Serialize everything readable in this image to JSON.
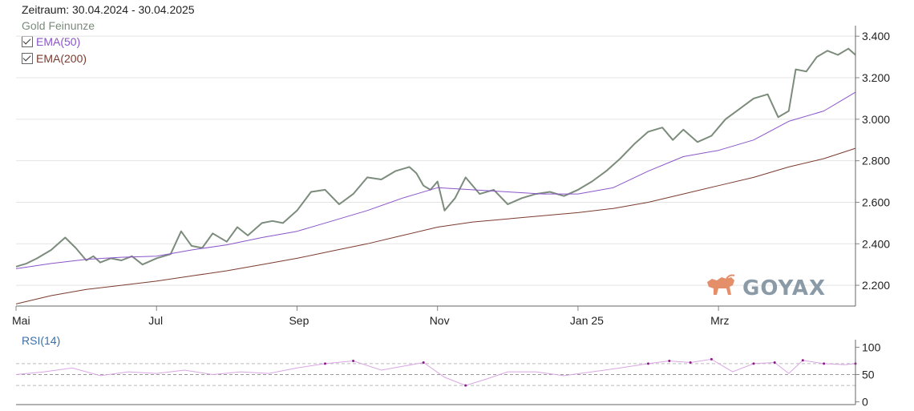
{
  "header": {
    "period": "Zeitraum: 30.04.2024 - 30.04.2025",
    "series": "Gold Feinunze",
    "legend": [
      {
        "label": "EMA(50)",
        "checked": true,
        "color": "#8a55c9"
      },
      {
        "label": "EMA(200)",
        "checked": true,
        "color": "#7a3b2e"
      }
    ]
  },
  "logo": {
    "text": "GOYAX"
  },
  "rsi": {
    "label": "RSI(14)"
  },
  "colors": {
    "price": "#7c8c7c",
    "ema50": "#8a55c9",
    "ema200": "#7a3b2e",
    "rsi": "#d9a6e3",
    "rsi_extreme": "#8c1a8c",
    "logo": "#e48e6a",
    "logo_text": "#8a9aa6"
  },
  "chart_data": [
    {
      "type": "line",
      "title": "Gold Feinunze",
      "x_ticks": [
        "Mai",
        "Jul",
        "Sep",
        "Nov",
        "Jan 25",
        "Mrz"
      ],
      "x_tick_months": [
        0,
        2,
        4,
        6,
        8,
        10
      ],
      "y_ticks": [
        "2.200",
        "2.400",
        "2.600",
        "2.800",
        "3.000",
        "3.200",
        "3.400"
      ],
      "y_tick_values": [
        2200,
        2400,
        2600,
        2800,
        3000,
        3200,
        3400
      ],
      "ylim": [
        2100,
        3420
      ],
      "xlim_months": [
        0,
        11.95
      ],
      "grid": true,
      "series": [
        {
          "name": "Gold Feinunze",
          "x": [
            0,
            0.15,
            0.3,
            0.5,
            0.7,
            0.85,
            1.0,
            1.1,
            1.2,
            1.35,
            1.5,
            1.65,
            1.8,
            2.0,
            2.2,
            2.35,
            2.5,
            2.65,
            2.8,
            3.0,
            3.15,
            3.3,
            3.5,
            3.65,
            3.8,
            4.0,
            4.2,
            4.4,
            4.6,
            4.8,
            5.0,
            5.2,
            5.4,
            5.6,
            5.7,
            5.8,
            5.9,
            6.0,
            6.1,
            6.25,
            6.4,
            6.6,
            6.8,
            7.0,
            7.2,
            7.4,
            7.6,
            7.8,
            8.0,
            8.2,
            8.4,
            8.6,
            8.8,
            9.0,
            9.2,
            9.35,
            9.5,
            9.7,
            9.9,
            10.1,
            10.3,
            10.5,
            10.7,
            10.85,
            11.0,
            11.1,
            11.25,
            11.4,
            11.55,
            11.7,
            11.85,
            11.95
          ],
          "values": [
            2290,
            2305,
            2330,
            2370,
            2430,
            2380,
            2320,
            2340,
            2310,
            2330,
            2320,
            2340,
            2300,
            2330,
            2350,
            2460,
            2390,
            2380,
            2450,
            2410,
            2480,
            2440,
            2500,
            2510,
            2500,
            2560,
            2650,
            2660,
            2590,
            2640,
            2720,
            2710,
            2750,
            2770,
            2740,
            2680,
            2660,
            2700,
            2560,
            2620,
            2720,
            2640,
            2660,
            2590,
            2620,
            2640,
            2650,
            2630,
            2660,
            2700,
            2750,
            2810,
            2880,
            2940,
            2960,
            2900,
            2950,
            2890,
            2920,
            3000,
            3050,
            3100,
            3120,
            3010,
            3040,
            3240,
            3230,
            3300,
            3330,
            3310,
            3340,
            3310
          ]
        },
        {
          "name": "EMA(50)",
          "x": [
            0,
            0.5,
            1,
            1.5,
            2,
            2.5,
            3,
            3.5,
            4,
            4.5,
            5,
            5.5,
            6,
            6.5,
            7,
            7.5,
            8,
            8.5,
            9,
            9.5,
            10,
            10.5,
            11,
            11.5,
            11.95
          ],
          "values": [
            2280,
            2305,
            2325,
            2335,
            2340,
            2370,
            2395,
            2430,
            2460,
            2510,
            2560,
            2620,
            2670,
            2660,
            2650,
            2640,
            2640,
            2670,
            2750,
            2820,
            2850,
            2900,
            2990,
            3040,
            3130
          ]
        },
        {
          "name": "EMA(200)",
          "x": [
            0,
            0.5,
            1,
            1.5,
            2,
            2.5,
            3,
            3.5,
            4,
            4.5,
            5,
            5.5,
            6,
            6.5,
            7,
            7.5,
            8,
            8.5,
            9,
            9.5,
            10,
            10.5,
            11,
            11.5,
            11.95
          ],
          "values": [
            2110,
            2150,
            2180,
            2200,
            2220,
            2245,
            2270,
            2300,
            2330,
            2365,
            2400,
            2440,
            2480,
            2505,
            2520,
            2535,
            2550,
            2570,
            2600,
            2640,
            2680,
            2720,
            2770,
            2810,
            2860
          ]
        }
      ]
    },
    {
      "type": "line",
      "title": "RSI(14)",
      "y_ticks": [
        "0",
        "50",
        "100"
      ],
      "y_tick_values": [
        0,
        50,
        100
      ],
      "ylim": [
        -5,
        105
      ],
      "reference_lines": [
        30,
        50,
        70
      ],
      "series": [
        {
          "name": "RSI(14)",
          "x": [
            0,
            0.4,
            0.8,
            1.2,
            1.6,
            2.0,
            2.4,
            2.8,
            3.2,
            3.6,
            4.0,
            4.4,
            4.8,
            5.2,
            5.5,
            5.8,
            6.1,
            6.4,
            6.7,
            7.0,
            7.4,
            7.8,
            8.2,
            8.6,
            9.0,
            9.3,
            9.6,
            9.9,
            10.2,
            10.5,
            10.8,
            11.0,
            11.2,
            11.5,
            11.8,
            11.95
          ],
          "values": [
            50,
            55,
            62,
            48,
            55,
            52,
            58,
            50,
            55,
            52,
            62,
            70,
            75,
            58,
            65,
            72,
            45,
            30,
            42,
            55,
            55,
            48,
            55,
            62,
            70,
            75,
            72,
            78,
            55,
            70,
            72,
            52,
            76,
            70,
            68,
            70
          ]
        }
      ]
    }
  ]
}
